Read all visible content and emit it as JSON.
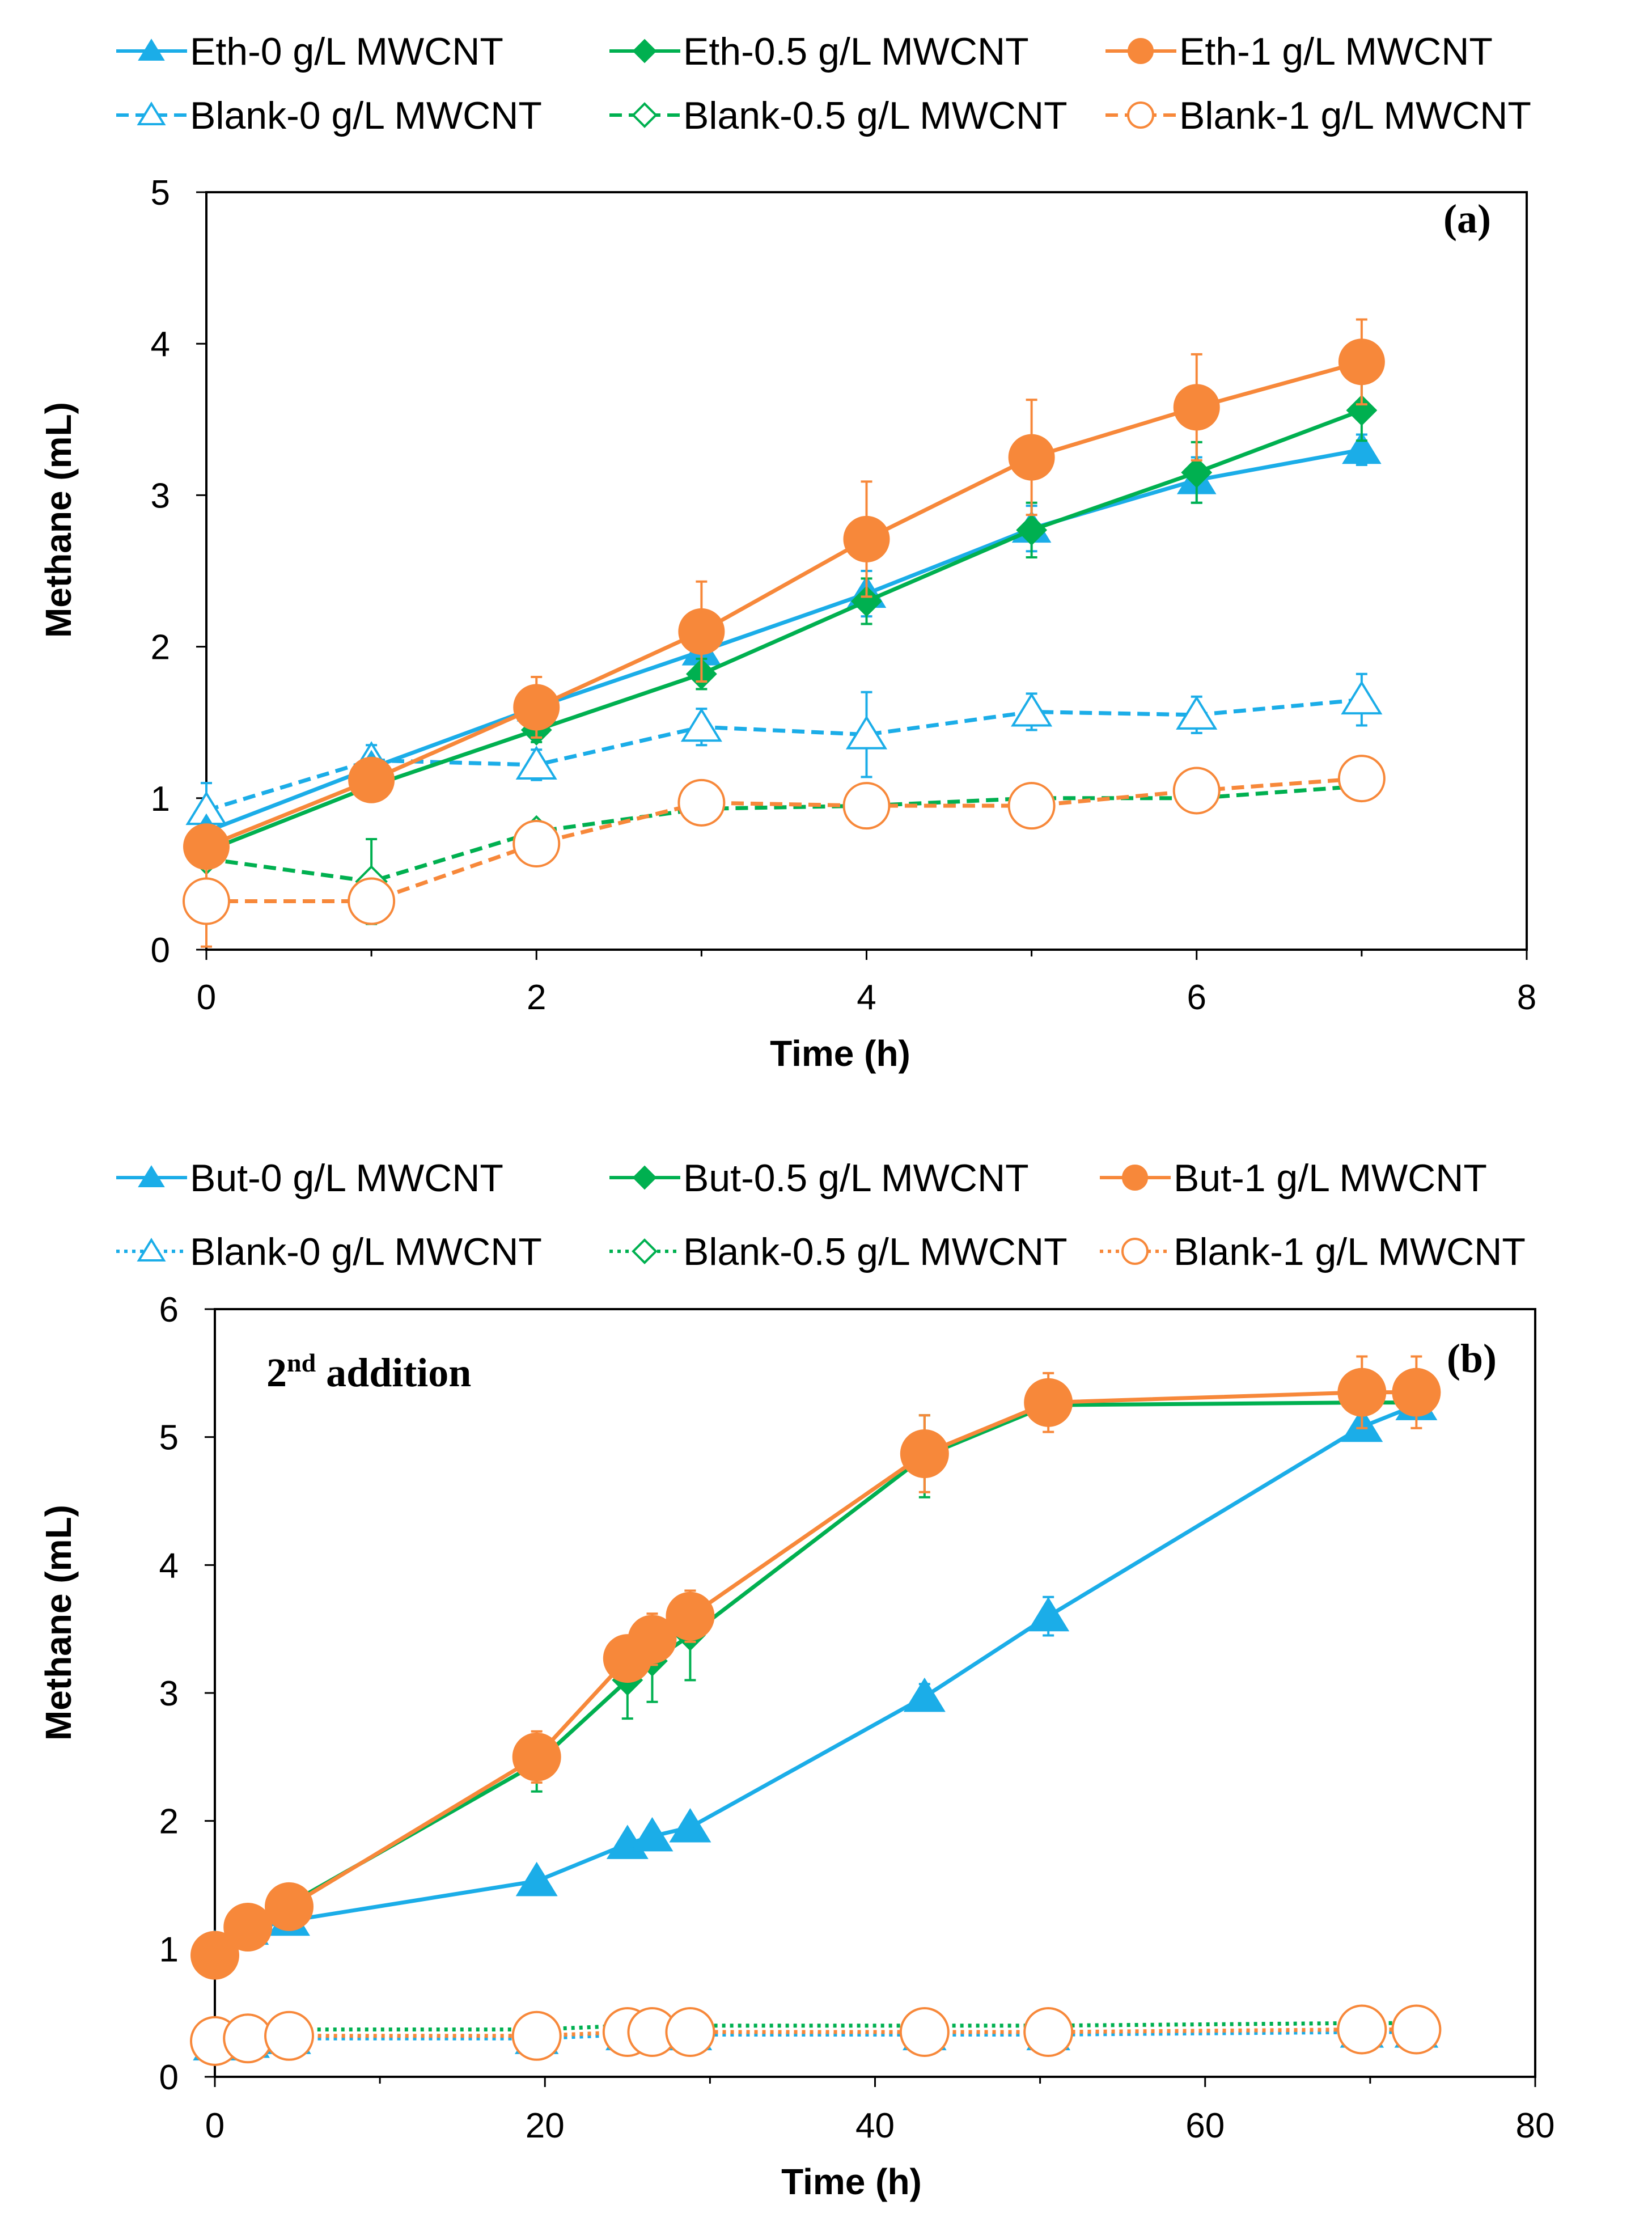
{
  "chart_data": [
    {
      "type": "line",
      "panel_label": "(a)",
      "xlabel": "Time (h)",
      "ylabel": "Methane  (mL)",
      "xlim": [
        0,
        8
      ],
      "ylim": [
        0,
        5
      ],
      "xticks": [
        0,
        2,
        4,
        6,
        8
      ],
      "yticks": [
        0,
        1,
        2,
        3,
        4,
        5
      ],
      "grid": false,
      "legend": "top",
      "x": [
        0,
        1,
        2,
        3,
        4,
        5,
        6,
        7
      ],
      "series": [
        {
          "name": "Eth-0 g/L MWCNT",
          "color": "#1BADE8",
          "marker": "triangle",
          "filled": true,
          "line": "solid",
          "values": [
            0.78,
            1.2,
            1.6,
            1.97,
            2.35,
            2.78,
            3.1,
            3.3
          ],
          "err": [
            0,
            0.05,
            0.05,
            0.08,
            0.15,
            0.15,
            0.15,
            0.1
          ]
        },
        {
          "name": "Eth-0.5 g/L MWCNT",
          "color": "#00B050",
          "marker": "diamond",
          "filled": true,
          "line": "solid",
          "values": [
            0.65,
            1.08,
            1.45,
            1.82,
            2.3,
            2.77,
            3.15,
            3.56
          ],
          "err": [
            0,
            0.08,
            0.08,
            0.1,
            0.15,
            0.18,
            0.2,
            0.2
          ]
        },
        {
          "name": "Eth-1 g/L MWCNT",
          "color": "#F7883A",
          "marker": "circle",
          "filled": true,
          "line": "solid",
          "values": [
            0.68,
            1.12,
            1.6,
            2.1,
            2.71,
            3.25,
            3.58,
            3.88
          ],
          "err": [
            0,
            0.05,
            0.2,
            0.33,
            0.38,
            0.38,
            0.35,
            0.28
          ]
        },
        {
          "name": "Blank-0 g/L MWCNT",
          "color": "#1BADE8",
          "marker": "triangle",
          "filled": false,
          "line": "dashed",
          "values": [
            0.92,
            1.25,
            1.22,
            1.47,
            1.42,
            1.57,
            1.55,
            1.65
          ],
          "err": [
            0.18,
            0.1,
            0.1,
            0.12,
            0.28,
            0.12,
            0.12,
            0.17
          ]
        },
        {
          "name": "Blank-0.5 g/L MWCNT",
          "color": "#00B050",
          "marker": "diamond",
          "filled": false,
          "line": "dashed",
          "values": [
            0.6,
            0.45,
            0.78,
            0.93,
            0.95,
            1.0,
            1.0,
            1.08
          ],
          "err": [
            0,
            0.28,
            0.05,
            0.05,
            0.05,
            0.05,
            0.05,
            0.05
          ]
        },
        {
          "name": "Blank-1 g/L MWCNT",
          "color": "#F7883A",
          "marker": "circle",
          "filled": false,
          "line": "dashed",
          "values": [
            0.32,
            0.32,
            0.7,
            0.97,
            0.95,
            0.95,
            1.05,
            1.13
          ],
          "err": [
            0.3,
            0.05,
            0.12,
            0.05,
            0.05,
            0.12,
            0.05,
            0.05
          ]
        }
      ]
    },
    {
      "type": "line",
      "panel_label": "(b)",
      "annotation": {
        "main": "2",
        "sup": "nd",
        "rest": " addition"
      },
      "xlabel": "Time (h)",
      "ylabel": "Methane  (mL)",
      "xlim": [
        0,
        80
      ],
      "ylim": [
        0,
        6
      ],
      "xticks": [
        0,
        20,
        40,
        60,
        80
      ],
      "yticks": [
        0,
        1,
        2,
        3,
        4,
        5,
        6
      ],
      "grid": false,
      "legend": "top",
      "x": [
        0,
        2,
        4.5,
        19.5,
        25,
        26.5,
        28.8,
        43,
        50.5,
        69.5,
        72.8
      ],
      "series": [
        {
          "name": "But-0 g/L MWCNT",
          "color": "#1BADE8",
          "marker": "triangle",
          "filled": true,
          "line": "solid",
          "values": [
            1.0,
            1.15,
            1.22,
            1.53,
            1.82,
            1.88,
            1.95,
            2.97,
            3.6,
            5.08,
            5.25
          ],
          "err": [
            0,
            0,
            0,
            0,
            0,
            0,
            0,
            0.1,
            0.15,
            0.05,
            0.05
          ]
        },
        {
          "name": "But-0.5 g/L MWCNT",
          "color": "#00B050",
          "marker": "diamond",
          "filled": true,
          "line": "solid",
          "values": [
            1.0,
            1.2,
            1.35,
            2.45,
            3.1,
            3.25,
            3.45,
            4.85,
            5.25,
            5.27,
            5.27
          ],
          "err": [
            0,
            0,
            0,
            0.22,
            0.3,
            0.32,
            0.35,
            0.32,
            0.1,
            0,
            0
          ]
        },
        {
          "name": "But-1 g/L MWCNT",
          "color": "#F7883A",
          "marker": "circle",
          "filled": true,
          "line": "solid",
          "values": [
            0.95,
            1.17,
            1.33,
            2.5,
            3.27,
            3.42,
            3.6,
            4.87,
            5.27,
            5.35,
            5.35
          ],
          "err": [
            0,
            0,
            0,
            0.2,
            0.15,
            0.2,
            0.2,
            0.3,
            0.23,
            0.28,
            0.28
          ]
        },
        {
          "name": "Blank-0 g/L MWCNT",
          "color": "#1BADE8",
          "marker": "triangle",
          "filled": false,
          "line": "dotted",
          "values": [
            0.25,
            0.27,
            0.3,
            0.3,
            0.33,
            0.33,
            0.33,
            0.33,
            0.33,
            0.35,
            0.35
          ],
          "err": [
            0,
            0,
            0,
            0,
            0,
            0,
            0,
            0,
            0,
            0,
            0
          ]
        },
        {
          "name": "Blank-0.5 g/L MWCNT",
          "color": "#00B050",
          "marker": "diamond",
          "filled": false,
          "line": "dotted",
          "values": [
            0.3,
            0.35,
            0.37,
            0.37,
            0.4,
            0.4,
            0.4,
            0.4,
            0.4,
            0.42,
            0.42
          ],
          "err": [
            0,
            0,
            0,
            0,
            0,
            0,
            0,
            0,
            0,
            0,
            0
          ]
        },
        {
          "name": "Blank-1 g/L MWCNT",
          "color": "#F7883A",
          "marker": "circle",
          "filled": false,
          "line": "dotted",
          "values": [
            0.28,
            0.3,
            0.32,
            0.32,
            0.35,
            0.35,
            0.35,
            0.35,
            0.35,
            0.37,
            0.37
          ],
          "err": [
            0,
            0,
            0,
            0,
            0,
            0,
            0,
            0,
            0,
            0,
            0
          ]
        }
      ]
    }
  ]
}
